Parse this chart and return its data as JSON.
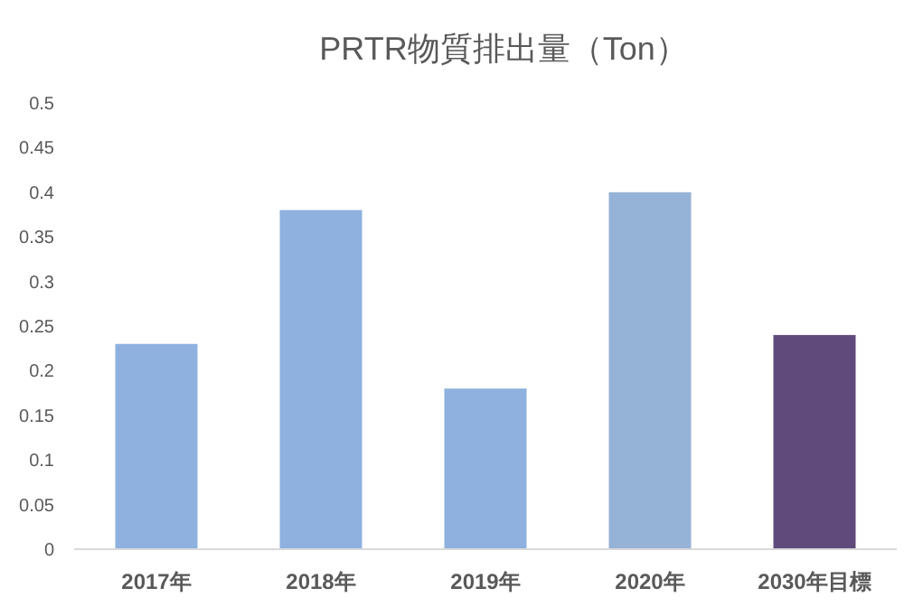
{
  "chart_data": {
    "type": "bar",
    "title": "PRTR物質排出量（Ton）",
    "categories": [
      "2017年",
      "2018年",
      "2019年",
      "2020年",
      "2030年目標"
    ],
    "values": [
      0.23,
      0.38,
      0.18,
      0.4,
      0.24
    ],
    "colors": [
      "#8eb1e0",
      "#8eb1e0",
      "#8eb1e0",
      "#95b2d7",
      "#604a7b"
    ],
    "ylim": [
      0,
      0.5
    ],
    "yticks": [
      0,
      0.05,
      0.1,
      0.15,
      0.2,
      0.25,
      0.3,
      0.35,
      0.4,
      0.45,
      0.5
    ],
    "grid": false
  }
}
